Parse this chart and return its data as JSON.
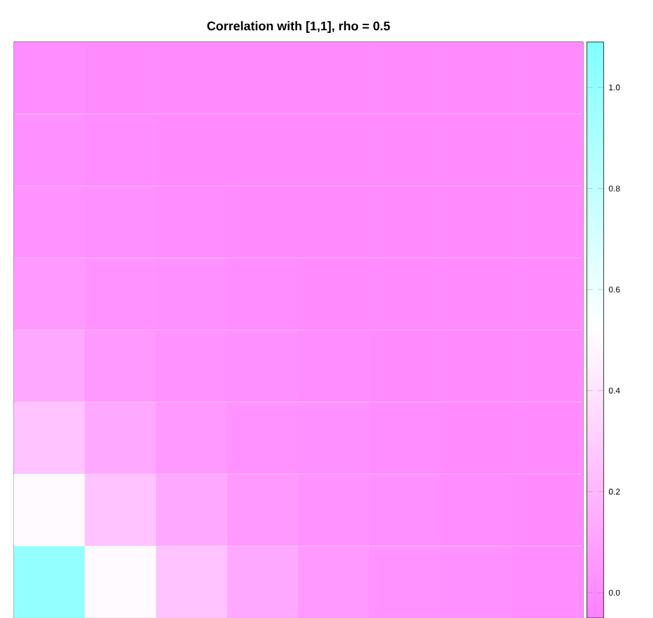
{
  "chart_data": {
    "type": "heatmap",
    "title": "Correlation with [1,1], rho = 0.5",
    "categories": [
      null,
      null,
      null,
      null,
      null,
      null,
      null,
      null
    ],
    "y_categories": [
      null,
      null,
      null,
      null,
      null,
      null,
      null,
      null
    ],
    "cells": [
      [
        0.01,
        0,
        0,
        0,
        0,
        0,
        0,
        0
      ],
      [
        0.02,
        0.01,
        0,
        0,
        0,
        0,
        0,
        0
      ],
      [
        0.03,
        0.02,
        0.01,
        0,
        0,
        0,
        0,
        0
      ],
      [
        0.06,
        0.03,
        0.02,
        0.01,
        0,
        0,
        0,
        0
      ],
      [
        0.13,
        0.06,
        0.03,
        0.02,
        0.01,
        0,
        0,
        0
      ],
      [
        0.25,
        0.13,
        0.06,
        0.03,
        0.02,
        0.01,
        0,
        0
      ],
      [
        0.5,
        0.25,
        0.13,
        0.06,
        0.03,
        0.02,
        0.01,
        0
      ],
      [
        1,
        0.5,
        0.25,
        0.13,
        0.06,
        0.03,
        0.02,
        0.01
      ]
    ],
    "clim": [
      -0.05,
      1.09
    ],
    "cticks": [
      {
        "value": 0,
        "label": "0.0"
      },
      {
        "value": 0.2,
        "label": "0.2"
      },
      {
        "value": 0.4,
        "label": "0.4"
      },
      {
        "value": 0.6,
        "label": "0.6"
      },
      {
        "value": 0.8,
        "label": "0.8"
      },
      {
        "value": 1,
        "label": "1.0"
      }
    ]
  }
}
